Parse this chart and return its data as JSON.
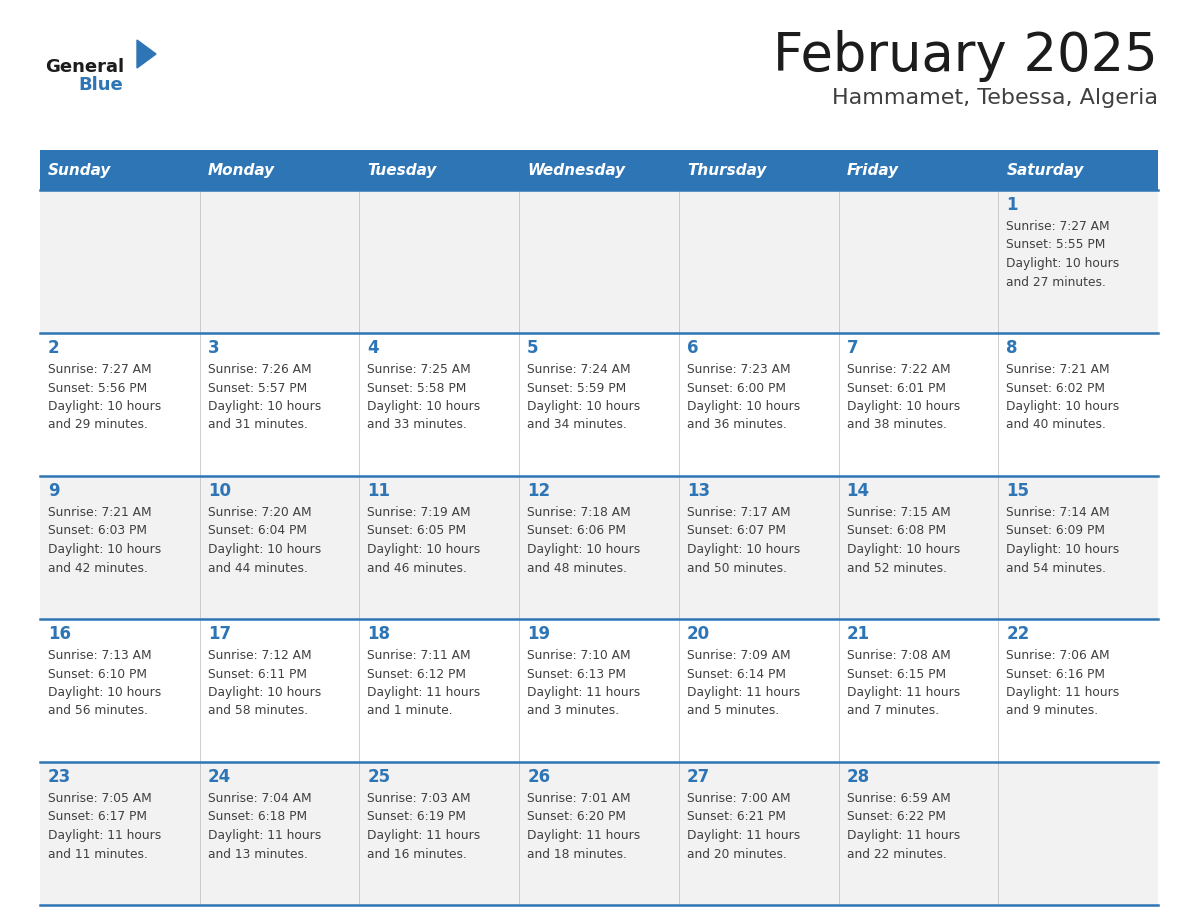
{
  "title": "February 2025",
  "subtitle": "Hammamet, Tebessa, Algeria",
  "header_bg": "#2E75B6",
  "header_text_color": "#FFFFFF",
  "cell_bg_light": "#F2F2F2",
  "cell_bg_white": "#FFFFFF",
  "day_number_color": "#2E75B6",
  "cell_text_color": "#404040",
  "divider_color": "#2E75B6",
  "days_of_week": [
    "Sunday",
    "Monday",
    "Tuesday",
    "Wednesday",
    "Thursday",
    "Friday",
    "Saturday"
  ],
  "weeks": [
    [
      {
        "day": null,
        "sunrise": null,
        "sunset": null,
        "daylight_line1": null,
        "daylight_line2": null
      },
      {
        "day": null,
        "sunrise": null,
        "sunset": null,
        "daylight_line1": null,
        "daylight_line2": null
      },
      {
        "day": null,
        "sunrise": null,
        "sunset": null,
        "daylight_line1": null,
        "daylight_line2": null
      },
      {
        "day": null,
        "sunrise": null,
        "sunset": null,
        "daylight_line1": null,
        "daylight_line2": null
      },
      {
        "day": null,
        "sunrise": null,
        "sunset": null,
        "daylight_line1": null,
        "daylight_line2": null
      },
      {
        "day": null,
        "sunrise": null,
        "sunset": null,
        "daylight_line1": null,
        "daylight_line2": null
      },
      {
        "day": 1,
        "sunrise": "7:27 AM",
        "sunset": "5:55 PM",
        "daylight_line1": "Daylight: 10 hours",
        "daylight_line2": "and 27 minutes."
      }
    ],
    [
      {
        "day": 2,
        "sunrise": "7:27 AM",
        "sunset": "5:56 PM",
        "daylight_line1": "Daylight: 10 hours",
        "daylight_line2": "and 29 minutes."
      },
      {
        "day": 3,
        "sunrise": "7:26 AM",
        "sunset": "5:57 PM",
        "daylight_line1": "Daylight: 10 hours",
        "daylight_line2": "and 31 minutes."
      },
      {
        "day": 4,
        "sunrise": "7:25 AM",
        "sunset": "5:58 PM",
        "daylight_line1": "Daylight: 10 hours",
        "daylight_line2": "and 33 minutes."
      },
      {
        "day": 5,
        "sunrise": "7:24 AM",
        "sunset": "5:59 PM",
        "daylight_line1": "Daylight: 10 hours",
        "daylight_line2": "and 34 minutes."
      },
      {
        "day": 6,
        "sunrise": "7:23 AM",
        "sunset": "6:00 PM",
        "daylight_line1": "Daylight: 10 hours",
        "daylight_line2": "and 36 minutes."
      },
      {
        "day": 7,
        "sunrise": "7:22 AM",
        "sunset": "6:01 PM",
        "daylight_line1": "Daylight: 10 hours",
        "daylight_line2": "and 38 minutes."
      },
      {
        "day": 8,
        "sunrise": "7:21 AM",
        "sunset": "6:02 PM",
        "daylight_line1": "Daylight: 10 hours",
        "daylight_line2": "and 40 minutes."
      }
    ],
    [
      {
        "day": 9,
        "sunrise": "7:21 AM",
        "sunset": "6:03 PM",
        "daylight_line1": "Daylight: 10 hours",
        "daylight_line2": "and 42 minutes."
      },
      {
        "day": 10,
        "sunrise": "7:20 AM",
        "sunset": "6:04 PM",
        "daylight_line1": "Daylight: 10 hours",
        "daylight_line2": "and 44 minutes."
      },
      {
        "day": 11,
        "sunrise": "7:19 AM",
        "sunset": "6:05 PM",
        "daylight_line1": "Daylight: 10 hours",
        "daylight_line2": "and 46 minutes."
      },
      {
        "day": 12,
        "sunrise": "7:18 AM",
        "sunset": "6:06 PM",
        "daylight_line1": "Daylight: 10 hours",
        "daylight_line2": "and 48 minutes."
      },
      {
        "day": 13,
        "sunrise": "7:17 AM",
        "sunset": "6:07 PM",
        "daylight_line1": "Daylight: 10 hours",
        "daylight_line2": "and 50 minutes."
      },
      {
        "day": 14,
        "sunrise": "7:15 AM",
        "sunset": "6:08 PM",
        "daylight_line1": "Daylight: 10 hours",
        "daylight_line2": "and 52 minutes."
      },
      {
        "day": 15,
        "sunrise": "7:14 AM",
        "sunset": "6:09 PM",
        "daylight_line1": "Daylight: 10 hours",
        "daylight_line2": "and 54 minutes."
      }
    ],
    [
      {
        "day": 16,
        "sunrise": "7:13 AM",
        "sunset": "6:10 PM",
        "daylight_line1": "Daylight: 10 hours",
        "daylight_line2": "and 56 minutes."
      },
      {
        "day": 17,
        "sunrise": "7:12 AM",
        "sunset": "6:11 PM",
        "daylight_line1": "Daylight: 10 hours",
        "daylight_line2": "and 58 minutes."
      },
      {
        "day": 18,
        "sunrise": "7:11 AM",
        "sunset": "6:12 PM",
        "daylight_line1": "Daylight: 11 hours",
        "daylight_line2": "and 1 minute."
      },
      {
        "day": 19,
        "sunrise": "7:10 AM",
        "sunset": "6:13 PM",
        "daylight_line1": "Daylight: 11 hours",
        "daylight_line2": "and 3 minutes."
      },
      {
        "day": 20,
        "sunrise": "7:09 AM",
        "sunset": "6:14 PM",
        "daylight_line1": "Daylight: 11 hours",
        "daylight_line2": "and 5 minutes."
      },
      {
        "day": 21,
        "sunrise": "7:08 AM",
        "sunset": "6:15 PM",
        "daylight_line1": "Daylight: 11 hours",
        "daylight_line2": "and 7 minutes."
      },
      {
        "day": 22,
        "sunrise": "7:06 AM",
        "sunset": "6:16 PM",
        "daylight_line1": "Daylight: 11 hours",
        "daylight_line2": "and 9 minutes."
      }
    ],
    [
      {
        "day": 23,
        "sunrise": "7:05 AM",
        "sunset": "6:17 PM",
        "daylight_line1": "Daylight: 11 hours",
        "daylight_line2": "and 11 minutes."
      },
      {
        "day": 24,
        "sunrise": "7:04 AM",
        "sunset": "6:18 PM",
        "daylight_line1": "Daylight: 11 hours",
        "daylight_line2": "and 13 minutes."
      },
      {
        "day": 25,
        "sunrise": "7:03 AM",
        "sunset": "6:19 PM",
        "daylight_line1": "Daylight: 11 hours",
        "daylight_line2": "and 16 minutes."
      },
      {
        "day": 26,
        "sunrise": "7:01 AM",
        "sunset": "6:20 PM",
        "daylight_line1": "Daylight: 11 hours",
        "daylight_line2": "and 18 minutes."
      },
      {
        "day": 27,
        "sunrise": "7:00 AM",
        "sunset": "6:21 PM",
        "daylight_line1": "Daylight: 11 hours",
        "daylight_line2": "and 20 minutes."
      },
      {
        "day": 28,
        "sunrise": "6:59 AM",
        "sunset": "6:22 PM",
        "daylight_line1": "Daylight: 11 hours",
        "daylight_line2": "and 22 minutes."
      },
      {
        "day": null,
        "sunrise": null,
        "sunset": null,
        "daylight_line1": null,
        "daylight_line2": null
      }
    ]
  ]
}
